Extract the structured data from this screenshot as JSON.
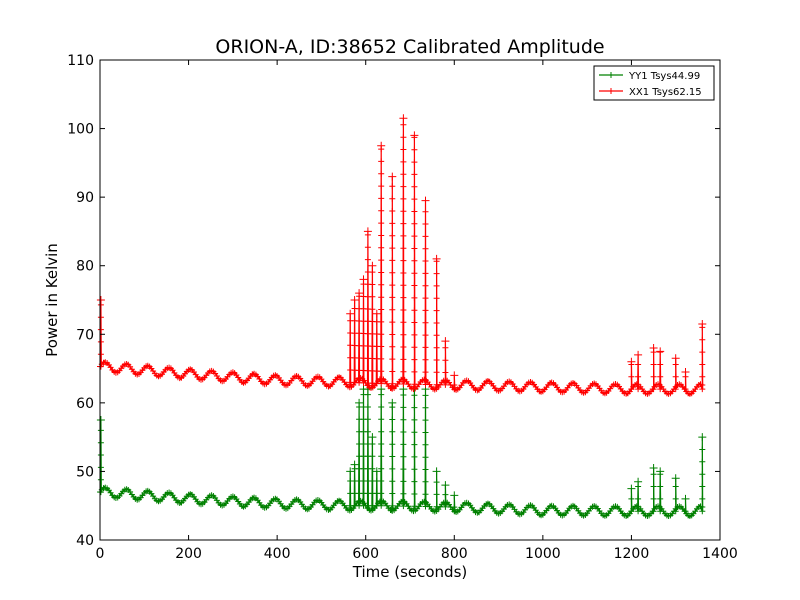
{
  "chart_data": {
    "type": "line",
    "title": "ORION-A, ID:38652 Calibrated Amplitude",
    "xlabel": "Time (seconds)",
    "ylabel": "Power in Kelvin",
    "xlim": [
      0,
      1400
    ],
    "ylim": [
      40,
      110
    ],
    "xticks": [
      0,
      200,
      400,
      600,
      800,
      1000,
      1200,
      1400
    ],
    "yticks": [
      40,
      50,
      60,
      70,
      80,
      90,
      100,
      110
    ],
    "grid": false,
    "legend_position": "top-right",
    "marker": "+",
    "series": [
      {
        "name": "YY1 Tsys44.99",
        "color": "#008000",
        "baseline": [
          [
            0,
            47.0
          ],
          [
            200,
            46.0
          ],
          [
            400,
            45.3
          ],
          [
            560,
            45.0
          ],
          [
            640,
            45.0
          ],
          [
            800,
            44.8
          ],
          [
            1000,
            44.3
          ],
          [
            1200,
            44.2
          ],
          [
            1360,
            44.2
          ]
        ],
        "ripple_amplitude": 0.7,
        "ripple_period": 48,
        "spikes": [
          [
            2,
            57.5
          ],
          [
            565,
            50
          ],
          [
            575,
            51
          ],
          [
            585,
            60
          ],
          [
            595,
            62
          ],
          [
            605,
            62
          ],
          [
            615,
            55
          ],
          [
            625,
            50
          ],
          [
            635,
            62
          ],
          [
            660,
            60
          ],
          [
            685,
            62
          ],
          [
            710,
            62
          ],
          [
            735,
            62
          ],
          [
            760,
            50
          ],
          [
            780,
            48
          ],
          [
            800,
            46.5
          ],
          [
            1200,
            47.5
          ],
          [
            1215,
            48.5
          ],
          [
            1250,
            50.5
          ],
          [
            1265,
            50
          ],
          [
            1300,
            49
          ],
          [
            1322,
            46
          ],
          [
            1360,
            55
          ]
        ]
      },
      {
        "name": "XX1 Tsys62.15",
        "color": "#ff0000",
        "baseline": [
          [
            0,
            65.3
          ],
          [
            200,
            64.2
          ],
          [
            400,
            63.3
          ],
          [
            560,
            63.0
          ],
          [
            640,
            62.8
          ],
          [
            800,
            62.6
          ],
          [
            1000,
            62.3
          ],
          [
            1200,
            62.0
          ],
          [
            1360,
            62.0
          ]
        ],
        "ripple_amplitude": 0.7,
        "ripple_period": 48,
        "spikes": [
          [
            2,
            75
          ],
          [
            565,
            73
          ],
          [
            575,
            75
          ],
          [
            585,
            76
          ],
          [
            595,
            78
          ],
          [
            605,
            85
          ],
          [
            615,
            80
          ],
          [
            625,
            73
          ],
          [
            635,
            97.5
          ],
          [
            660,
            93
          ],
          [
            685,
            101.5
          ],
          [
            710,
            99
          ],
          [
            735,
            89.5
          ],
          [
            760,
            81
          ],
          [
            780,
            69
          ],
          [
            800,
            64
          ],
          [
            1200,
            66
          ],
          [
            1215,
            67
          ],
          [
            1250,
            68
          ],
          [
            1265,
            67.5
          ],
          [
            1300,
            66.5
          ],
          [
            1322,
            64.5
          ],
          [
            1360,
            71.5
          ]
        ]
      }
    ]
  }
}
